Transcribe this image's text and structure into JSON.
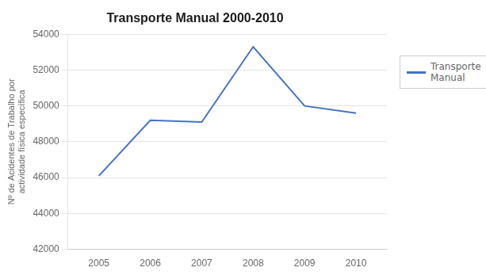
{
  "chart_data": {
    "type": "line",
    "title": "Transporte Manual 2000-2010",
    "x": [
      2005,
      2006,
      2007,
      2008,
      2009,
      2010
    ],
    "xlim": [
      2004.4,
      2010.6
    ],
    "xticks": [
      2005,
      2006,
      2007,
      2008,
      2009,
      2010
    ],
    "ylabel": "Nº de Acidentes de Trabalho por\nactividade física específica",
    "series": [
      {
        "name": "Transporte\nManual",
        "color": "#4472C4",
        "values": [
          46100,
          49200,
          49100,
          53300,
          50000,
          49600
        ]
      }
    ],
    "ylim": [
      42000,
      54000
    ],
    "yticks": [
      42000,
      44000,
      46000,
      48000,
      50000,
      52000,
      54000
    ],
    "grid": "y",
    "legend": "right"
  }
}
